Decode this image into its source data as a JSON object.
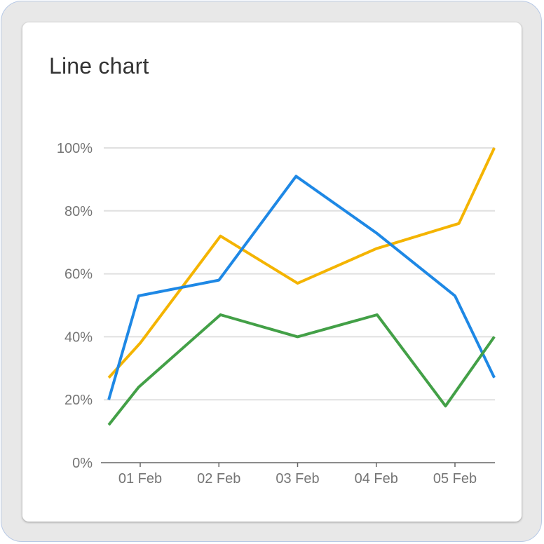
{
  "card": {
    "title": "Line chart"
  },
  "colors": {
    "card_bg": "#ffffff",
    "frame_bg": "#e8e8e8",
    "grid": "#e0e0e0",
    "axis": "#666666",
    "tick_text": "#757575"
  },
  "chart_data": {
    "type": "line",
    "title": "Line chart",
    "xlabel": "",
    "ylabel": "",
    "ylim": [
      0,
      100
    ],
    "y_ticks": [
      "0%",
      "20%",
      "40%",
      "60%",
      "80%",
      "100%"
    ],
    "x_tick_labels": [
      "01 Feb",
      "02 Feb",
      "03 Feb",
      "04 Feb",
      "05 Feb"
    ],
    "x_range": [
      0.5,
      5.5
    ],
    "grid": true,
    "legend": "none",
    "series": [
      {
        "color": "#f4b400",
        "points": [
          {
            "x": 0.6,
            "y": 27
          },
          {
            "x": 1.0,
            "y": 38
          },
          {
            "x": 2.02,
            "y": 72
          },
          {
            "x": 3.0,
            "y": 57
          },
          {
            "x": 4.0,
            "y": 68
          },
          {
            "x": 5.05,
            "y": 76
          },
          {
            "x": 5.5,
            "y": 100
          }
        ]
      },
      {
        "color": "#1e88e5",
        "points": [
          {
            "x": 0.6,
            "y": 20
          },
          {
            "x": 0.98,
            "y": 53
          },
          {
            "x": 2.0,
            "y": 58
          },
          {
            "x": 2.98,
            "y": 91
          },
          {
            "x": 4.0,
            "y": 73
          },
          {
            "x": 5.0,
            "y": 53
          },
          {
            "x": 5.5,
            "y": 27
          }
        ]
      },
      {
        "color": "#43a047",
        "points": [
          {
            "x": 0.6,
            "y": 12
          },
          {
            "x": 0.98,
            "y": 24
          },
          {
            "x": 2.02,
            "y": 47
          },
          {
            "x": 3.0,
            "y": 40
          },
          {
            "x": 4.01,
            "y": 47
          },
          {
            "x": 4.88,
            "y": 18
          },
          {
            "x": 5.5,
            "y": 40
          }
        ]
      }
    ]
  }
}
